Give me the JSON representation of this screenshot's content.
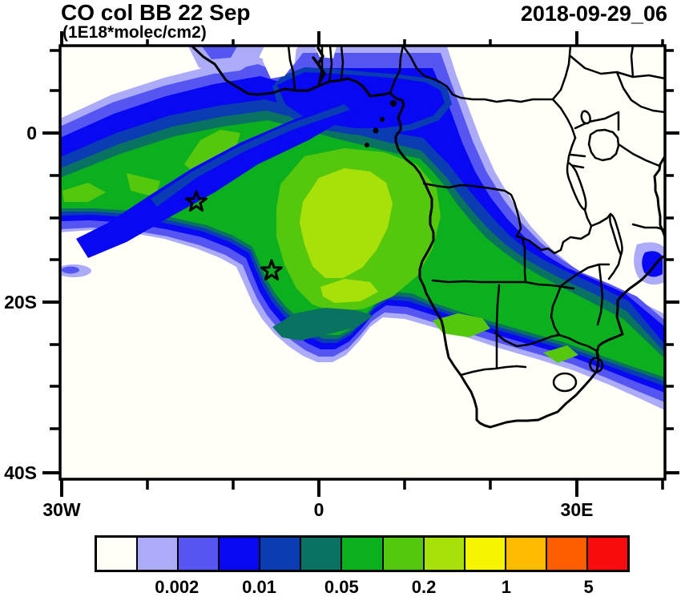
{
  "header": {
    "title": "CO col BB 22 Sep",
    "units_subtitle": "(1E18*molec/cm2)",
    "datetime_stamp": "2018-09-29_06"
  },
  "chart_data": {
    "type": "heatmap",
    "title": "CO col BB 22 Sep",
    "subtitle_units": "(1E18*molec/cm2)",
    "datetime_stamp": "2018-09-29_06",
    "x_axis": {
      "label_ticks": [
        "30W",
        "0",
        "30E"
      ],
      "minor_tick_interval_deg": 10,
      "lon_range": [
        "30W",
        "40E"
      ]
    },
    "y_axis": {
      "label_ticks": [
        "0",
        "20S",
        "40S"
      ],
      "minor_tick_interval_deg": 5,
      "lat_range": [
        "10N",
        "41S"
      ]
    },
    "colorbar": {
      "units": "1E18*molec/cm2",
      "labels": [
        "0.002",
        "0.01",
        "0.05",
        "0.2",
        "1",
        "5"
      ],
      "colors": [
        "#fffff8",
        "#ababf8",
        "#5555f2",
        "#0808f2",
        "#0a3cb4",
        "#0a7261",
        "#0caf1e",
        "#55c80d",
        "#a8e00a",
        "#f5f500",
        "#ffbb00",
        "#ff5e00",
        "#fa0c0c"
      ]
    },
    "map_content": {
      "plume_description": "Broad CO plume arcs from the tropical Atlantic (30W near the equator) eastward across the Gulf of Guinea, Angola and DR Congo, then southeast through the Mozambique Channel; core values (apple green / yellow-green bands, ~0.2-0.5) sit near 5W-12E, 5S-18S; white (<0.001) over the SW Atlantic, South Africa interior and East Africa.",
      "fire_markers": [
        {
          "symbol": "star",
          "lon": "14.3W",
          "lat": "8.0S"
        },
        {
          "symbol": "star",
          "lon": "5.5W",
          "lat": "16.3S"
        }
      ]
    }
  }
}
